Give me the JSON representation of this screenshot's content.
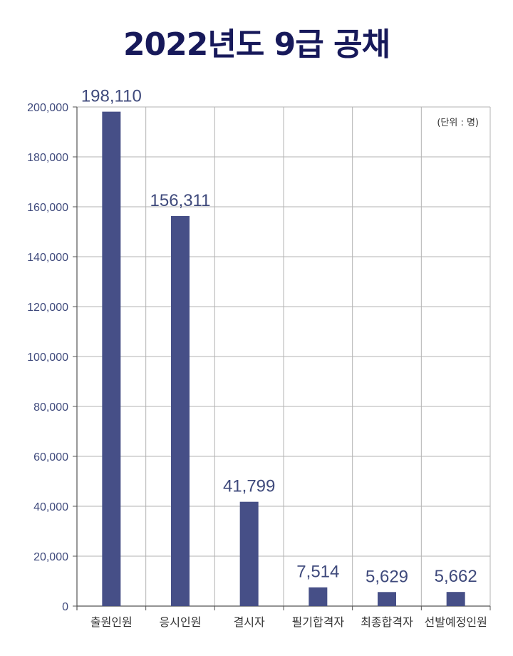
{
  "chart_data": {
    "type": "bar",
    "title": "2022년도 9급 공채",
    "unit_note": "(단위 : 명)",
    "categories": [
      "출원인원",
      "응시인원",
      "결시자",
      "필기합격자",
      "최종합격자",
      "선발예정인원"
    ],
    "values": [
      198110,
      156311,
      41799,
      7514,
      5629,
      5662
    ],
    "value_labels": [
      "198,110",
      "156,311",
      "41,799",
      "7,514",
      "5,629",
      "5,662"
    ],
    "ylim": [
      0,
      200000
    ],
    "yticks": [
      0,
      20000,
      40000,
      60000,
      80000,
      100000,
      120000,
      140000,
      160000,
      180000,
      200000
    ],
    "ytick_labels": [
      "0",
      "20,000",
      "40,000",
      "60,000",
      "80,000",
      "100,000",
      "120,000",
      "140,000",
      "160,000",
      "180,000",
      "200,000"
    ],
    "grid": true,
    "bar_color": "#464f87",
    "grid_color": "#b3b3b3",
    "title_color": "#17195a"
  }
}
